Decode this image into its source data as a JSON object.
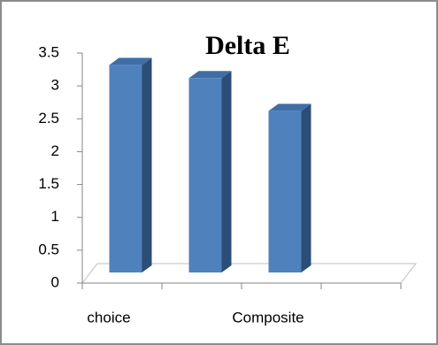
{
  "chart_data": {
    "type": "bar3d",
    "title": "Delta E",
    "categories": [
      "choice",
      null,
      "Composite",
      null
    ],
    "values": [
      3.4,
      3.2,
      2.7,
      null
    ],
    "color": "#4f81bd",
    "ylim": [
      0,
      3.5
    ],
    "yticks": [
      0,
      0.5,
      1,
      1.5,
      2,
      2.5,
      3,
      3.5
    ]
  }
}
